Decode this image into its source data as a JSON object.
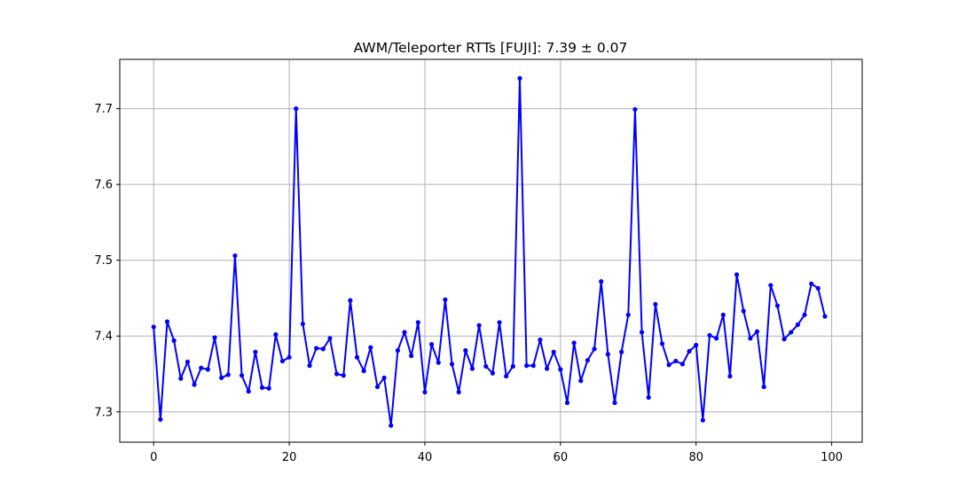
{
  "chart_data": {
    "type": "line",
    "title": "AWM/Teleporter RTTs [FUJI]: 7.39 ± 0.07",
    "xlabel": "",
    "ylabel": "",
    "xlim": [
      -5,
      104.5
    ],
    "ylim": [
      7.26,
      7.765
    ],
    "xticks": [
      0,
      20,
      40,
      60,
      80,
      100
    ],
    "yticks": [
      7.3,
      7.4,
      7.5,
      7.6,
      7.7
    ],
    "ytick_labels": [
      "7.3",
      "7.4",
      "7.5",
      "7.6",
      "7.7"
    ],
    "grid": true,
    "legend": "none",
    "series": [
      {
        "color": "#0000ff",
        "marker": "circle",
        "x": [
          0,
          1,
          2,
          3,
          4,
          5,
          6,
          7,
          8,
          9,
          10,
          11,
          12,
          13,
          14,
          15,
          16,
          17,
          18,
          19,
          20,
          21,
          22,
          23,
          24,
          25,
          26,
          27,
          28,
          29,
          30,
          31,
          32,
          33,
          34,
          35,
          36,
          37,
          38,
          39,
          40,
          41,
          42,
          43,
          44,
          45,
          46,
          47,
          48,
          49,
          50,
          51,
          52,
          53,
          54,
          55,
          56,
          57,
          58,
          59,
          60,
          61,
          62,
          63,
          64,
          65,
          66,
          67,
          68,
          69,
          70,
          71,
          72,
          73,
          74,
          75,
          76,
          77,
          78,
          79,
          80,
          81,
          82,
          83,
          84,
          85,
          86,
          87,
          88,
          89,
          90,
          91,
          92,
          93,
          94,
          95,
          96,
          97,
          98,
          99
        ],
        "y": [
          7.412,
          7.29,
          7.419,
          7.394,
          7.344,
          7.366,
          7.336,
          7.358,
          7.356,
          7.398,
          7.345,
          7.349,
          7.506,
          7.348,
          7.327,
          7.379,
          7.332,
          7.331,
          7.402,
          7.367,
          7.372,
          7.7,
          7.416,
          7.361,
          7.384,
          7.383,
          7.397,
          7.35,
          7.348,
          7.447,
          7.372,
          7.354,
          7.385,
          7.333,
          7.345,
          7.282,
          7.381,
          7.405,
          7.374,
          7.418,
          7.326,
          7.389,
          7.365,
          7.448,
          7.363,
          7.326,
          7.381,
          7.357,
          7.414,
          7.36,
          7.351,
          7.418,
          7.347,
          7.36,
          7.74,
          7.361,
          7.361,
          7.395,
          7.357,
          7.379,
          7.356,
          7.312,
          7.391,
          7.341,
          7.368,
          7.383,
          7.472,
          7.376,
          7.312,
          7.379,
          7.428,
          7.699,
          7.405,
          7.319,
          7.442,
          7.39,
          7.362,
          7.367,
          7.363,
          7.38,
          7.388,
          7.289,
          7.401,
          7.397,
          7.428,
          7.347,
          7.481,
          7.433,
          7.397,
          7.406,
          7.333,
          7.467,
          7.44,
          7.396,
          7.405,
          7.415,
          7.428,
          7.469,
          7.463,
          7.426
        ]
      }
    ]
  },
  "colors": {
    "line": "#0000ff",
    "grid": "#b0b0b0",
    "axes": "#000000",
    "background": "#ffffff"
  }
}
